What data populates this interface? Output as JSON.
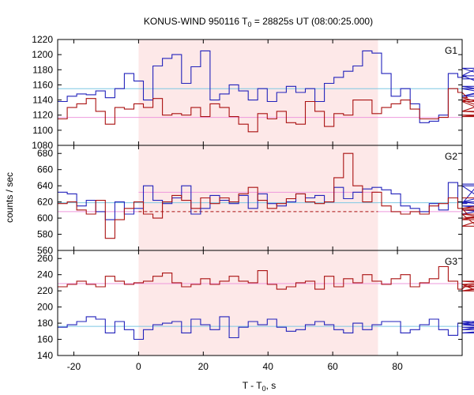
{
  "chart_data": {
    "type": "line",
    "title": "KONUS-WIND 950116 T",
    "title_sub": "0",
    "title_rest": " = 28825s UT (08:00:25.000)",
    "xlabel": "T - T",
    "xlabel_sub": "0",
    "xlabel_rest": ", s",
    "ylabel": "counts / sec",
    "xlim": [
      -25,
      100
    ],
    "xticks": [
      -20,
      0,
      20,
      40,
      60,
      80
    ],
    "highlight": {
      "x0": 0,
      "x1": 74,
      "color": "#fde8e8"
    },
    "bin_start": -25,
    "bin_width": 2.944,
    "panels": [
      {
        "label": "G1",
        "ylim": [
          1080,
          1220
        ],
        "yticks": [
          1080,
          1100,
          1120,
          1140,
          1160,
          1180,
          1200,
          1220
        ],
        "series": [
          {
            "color": "#2222bb",
            "values": [
              1138,
              1145,
              1148,
              1147,
              1152,
              1143,
              1155,
              1175,
              1165,
              1140,
              1185,
              1195,
              1200,
              1162,
              1184,
              1205,
              1140,
              1148,
              1160,
              1152,
              1140,
              1155,
              1138,
              1150,
              1158,
              1150,
              1155,
              1138,
              1162,
              1170,
              1178,
              1185,
              1205,
              1202,
              1175,
              1145,
              1155,
              1135,
              1110,
              1112,
              1120,
              1175,
              1170,
              1172,
              1182,
              1172,
              1155,
              1145,
              1158,
              1145,
              1168
            ]
          },
          {
            "color": "#aa1111",
            "values": [
              1115,
              1130,
              1135,
              1142,
              1125,
              1108,
              1130,
              1128,
              1135,
              1130,
              1142,
              1120,
              1122,
              1120,
              1130,
              1118,
              1135,
              1130,
              1118,
              1108,
              1098,
              1122,
              1115,
              1125,
              1110,
              1108,
              1138,
              1125,
              1105,
              1122,
              1120,
              1140,
              1140,
              1122,
              1130,
              1135,
              1140,
              1128,
              1115,
              1115,
              1117,
              1155,
              1150,
              1143,
              1138,
              1125,
              1140,
              1120,
              1118,
              1125,
              1120
            ]
          }
        ],
        "fit_lines": [
          {
            "color": "#7ec8e3",
            "y": 1155,
            "x0": -25,
            "x1": 100,
            "dash": false
          },
          {
            "color": "#ee99dd",
            "y": 1117,
            "x0": -25,
            "x1": 100,
            "dash": false
          }
        ]
      },
      {
        "label": "G2",
        "ylim": [
          560,
          690
        ],
        "yticks": [
          560,
          580,
          600,
          620,
          640,
          660,
          680
        ],
        "series": [
          {
            "color": "#2222bb",
            "values": [
              632,
              630,
              615,
              622,
              608,
              598,
              620,
              605,
              612,
              640,
              622,
              618,
              625,
              640,
              605,
              612,
              628,
              622,
              618,
              628,
              612,
              630,
              618,
              615,
              620,
              630,
              625,
              628,
              620,
              638,
              624,
              632,
              636,
              638,
              635,
              630,
              615,
              612,
              608,
              618,
              610,
              644,
              620,
              618,
              640,
              620,
              615,
              610,
              605,
              620,
              642
            ]
          },
          {
            "color": "#aa1111",
            "values": [
              618,
              620,
              610,
              605,
              622,
              575,
              598,
              612,
              620,
              605,
              600,
              620,
              628,
              622,
              612,
              625,
              618,
              625,
              620,
              630,
              638,
              622,
              612,
              618,
              624,
              630,
              620,
              618,
              620,
              650,
              680,
              640,
              620,
              632,
              615,
              608,
              605,
              608,
              605,
              615,
              618,
              625,
              612,
              605,
              590,
              600,
              605,
              598,
              610,
              612,
              625
            ]
          }
        ],
        "fit_lines": [
          {
            "color": "#7ec8e3",
            "y": 619,
            "x0": -25,
            "x1": 100,
            "dash": false
          },
          {
            "color": "#ee99dd",
            "y": 608,
            "x0": -25,
            "x1": 0,
            "dash": false
          },
          {
            "color": "#ee99dd",
            "y": 608,
            "x0": 74,
            "x1": 100,
            "dash": false
          },
          {
            "color": "#ee99dd",
            "y": 632,
            "x0": 0,
            "x1": 74,
            "dash": false
          },
          {
            "color": "#aa1111",
            "y": 608,
            "x0": 0,
            "x1": 74,
            "dash": true
          }
        ]
      },
      {
        "label": "G3",
        "ylim": [
          140,
          270
        ],
        "yticks": [
          140,
          160,
          180,
          200,
          220,
          240,
          260
        ],
        "series": [
          {
            "color": "#2222bb",
            "values": [
              175,
              178,
              182,
              188,
              185,
              168,
              182,
              172,
              160,
              172,
              178,
              180,
              182,
              168,
              185,
              178,
              172,
              188,
              162,
              175,
              182,
              178,
              185,
              175,
              170,
              172,
              178,
              182,
              178,
              172,
              168,
              180,
              172,
              178,
              182,
              182,
              168,
              172,
              178,
              185,
              172,
              165,
              180,
              178,
              182,
              178,
              175,
              172,
              180,
              168,
              175
            ]
          },
          {
            "color": "#aa1111",
            "values": [
              225,
              228,
              232,
              228,
              225,
              238,
              232,
              228,
              230,
              232,
              238,
              242,
              230,
              225,
              228,
              235,
              228,
              232,
              238,
              232,
              230,
              245,
              228,
              222,
              225,
              230,
              232,
              222,
              238,
              225,
              235,
              230,
              240,
              232,
              228,
              235,
              240,
              225,
              230,
              235,
              250,
              232,
              222,
              228,
              220,
              225,
              228,
              220,
              228,
              232,
              225
            ]
          }
        ],
        "fit_lines": [
          {
            "color": "#7ec8e3",
            "y": 176,
            "x0": -25,
            "x1": 100,
            "dash": false
          },
          {
            "color": "#ee99dd",
            "y": 229,
            "x0": -25,
            "x1": 100,
            "dash": false
          }
        ]
      }
    ]
  }
}
